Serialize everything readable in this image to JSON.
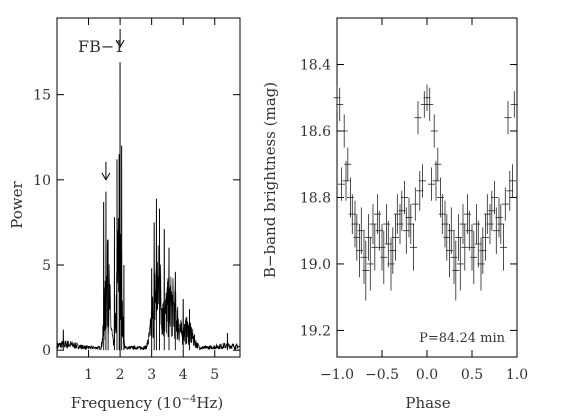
{
  "chart_data": [
    {
      "type": "line",
      "panel": "left",
      "ylabel": "Power",
      "xlabel_main": "Frequency (10",
      "xlabel_exp": "−4",
      "xlabel_unit": "Hz)",
      "xlim": [
        0,
        5.8
      ],
      "ylim": [
        -0.4,
        19.5
      ],
      "xticks": [
        1,
        2,
        3,
        4,
        5
      ],
      "yticks": [
        0,
        5,
        10,
        15
      ],
      "grid": false,
      "annotation": "FB−1",
      "arrow_markers": [
        {
          "x": 1.55,
          "y": 10.0
        },
        {
          "x": 2.0,
          "y": 17.8
        }
      ],
      "peaks": [
        {
          "x": 1.48,
          "y": 8.7
        },
        {
          "x": 1.55,
          "y": 9.3
        },
        {
          "x": 1.62,
          "y": 6.5
        },
        {
          "x": 1.82,
          "y": 7.8
        },
        {
          "x": 1.9,
          "y": 11.2
        },
        {
          "x": 1.97,
          "y": 11.5
        },
        {
          "x": 2.0,
          "y": 16.9
        },
        {
          "x": 2.05,
          "y": 12.0
        },
        {
          "x": 2.12,
          "y": 5.0
        },
        {
          "x": 3.0,
          "y": 4.8
        },
        {
          "x": 3.08,
          "y": 7.5
        },
        {
          "x": 3.15,
          "y": 8.9
        },
        {
          "x": 3.25,
          "y": 8.3
        },
        {
          "x": 3.4,
          "y": 7.1
        },
        {
          "x": 3.55,
          "y": 6.0
        },
        {
          "x": 3.75,
          "y": 4.6
        },
        {
          "x": 4.0,
          "y": 3.0
        },
        {
          "x": 4.2,
          "y": 2.4
        },
        {
          "x": 0.2,
          "y": 1.2
        },
        {
          "x": 5.4,
          "y": 1.0
        }
      ]
    },
    {
      "type": "scatter",
      "panel": "right",
      "ylabel": "B−band brightness (mag)",
      "xlabel": "Phase",
      "xlim": [
        -1.0,
        1.0
      ],
      "ylim": [
        19.28,
        18.26
      ],
      "yreversed": true,
      "xticks": [
        -1.0,
        -0.5,
        0.0,
        0.5,
        1.0
      ],
      "xtick_labels": [
        "−1.0",
        "−0.5",
        "0.0",
        "0.5",
        "1.0"
      ],
      "yticks": [
        18.4,
        18.6,
        18.8,
        19.0,
        19.2
      ],
      "ytick_labels": [
        "18.4",
        "18.6",
        "18.8",
        "19.0",
        "19.2"
      ],
      "grid": false,
      "annotation": "P=84.24 min",
      "half_phase": [
        0.0,
        0.03,
        0.05,
        0.08,
        0.1,
        0.12,
        0.15,
        0.17,
        0.2,
        0.22,
        0.25,
        0.27,
        0.3,
        0.32,
        0.35,
        0.37,
        0.4,
        0.42,
        0.45,
        0.47,
        0.5,
        0.52,
        0.55,
        0.57,
        0.6,
        0.62,
        0.65,
        0.67,
        0.7,
        0.72,
        0.75,
        0.77,
        0.8,
        0.82,
        0.85,
        0.87,
        0.9,
        0.92,
        0.95,
        0.97
      ],
      "half_mag": [
        18.5,
        18.52,
        18.76,
        18.6,
        18.75,
        18.7,
        18.8,
        18.85,
        18.88,
        18.92,
        18.96,
        18.9,
        18.98,
        19.02,
        18.92,
        19.0,
        18.88,
        18.95,
        18.85,
        18.9,
        18.95,
        18.98,
        18.88,
        18.94,
        19.0,
        18.96,
        18.92,
        18.85,
        18.88,
        18.84,
        18.8,
        18.9,
        18.86,
        18.88,
        18.95,
        18.82,
        18.56,
        18.78,
        18.75,
        18.52
      ],
      "half_err": [
        0.04,
        0.05,
        0.05,
        0.05,
        0.06,
        0.05,
        0.06,
        0.06,
        0.07,
        0.07,
        0.08,
        0.07,
        0.08,
        0.09,
        0.07,
        0.08,
        0.06,
        0.07,
        0.06,
        0.06,
        0.07,
        0.08,
        0.06,
        0.07,
        0.08,
        0.07,
        0.07,
        0.06,
        0.06,
        0.06,
        0.05,
        0.07,
        0.06,
        0.06,
        0.07,
        0.05,
        0.05,
        0.06,
        0.05,
        0.04
      ]
    }
  ]
}
